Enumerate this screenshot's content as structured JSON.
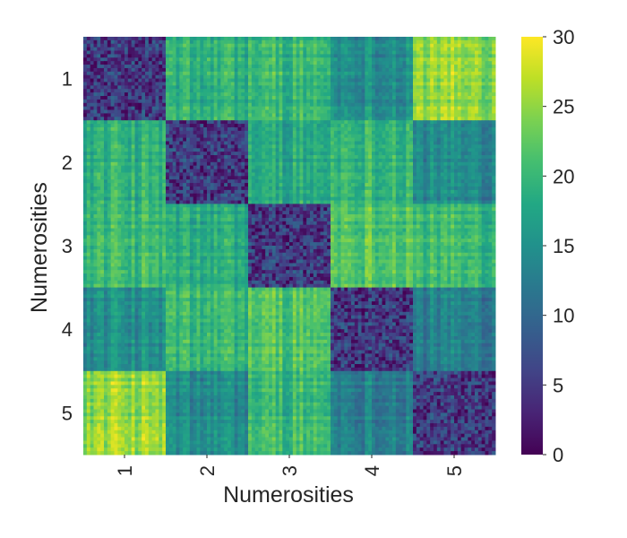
{
  "chart_data": {
    "type": "heatmap",
    "xlabel": "Numerosities",
    "ylabel": "Numerosities",
    "x_categories": [
      "1",
      "2",
      "3",
      "4",
      "5"
    ],
    "y_categories": [
      "1",
      "2",
      "3",
      "4",
      "5"
    ],
    "block_means": [
      [
        3,
        19,
        20,
        15,
        25
      ],
      [
        19,
        3,
        18,
        20,
        14
      ],
      [
        20,
        18,
        3,
        22,
        20
      ],
      [
        15,
        20,
        22,
        3,
        13
      ],
      [
        25,
        14,
        20,
        13,
        3
      ]
    ],
    "colorbar": {
      "colormap": "viridis",
      "range": [
        0,
        30
      ],
      "ticks": [
        "0",
        "5",
        "10",
        "15",
        "20",
        "25",
        "30"
      ]
    }
  }
}
